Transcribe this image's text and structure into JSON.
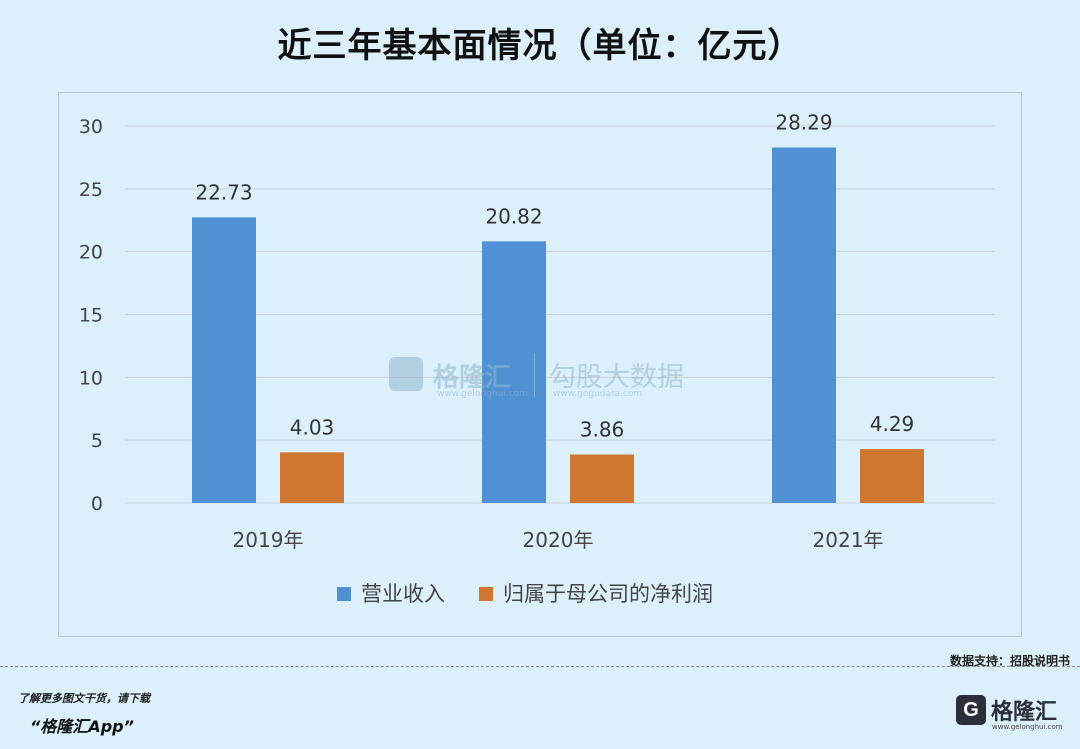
{
  "title": "近三年基本面情况（单位：亿元）",
  "watermark": {
    "left_logo": "格隆汇",
    "left_url": "www.gelonghui.com",
    "right_text": "勾股大数据",
    "right_url": "www.gogudata.com"
  },
  "source": "数据支持：招股说明书",
  "promo": {
    "line": "了解更多图文干货，请下载",
    "app": "“格隆汇App”"
  },
  "brand": {
    "logo_letter": "G",
    "name": "格隆汇",
    "url": "www.gelonghui.com"
  },
  "chart_data": {
    "type": "bar",
    "categories": [
      "2019年",
      "2020年",
      "2021年"
    ],
    "series": [
      {
        "name": "营业收入",
        "values": [
          22.73,
          20.82,
          28.29
        ],
        "labels": [
          "22.73",
          "20.82",
          "28.29"
        ],
        "color": "#4f91d2"
      },
      {
        "name": "归属于母公司的净利润",
        "values": [
          4.03,
          3.86,
          4.29
        ],
        "labels": [
          "4.03",
          "3.86",
          "4.29"
        ],
        "color": "#cf7631"
      }
    ],
    "ylim": [
      0,
      30
    ],
    "yticks": [
      "0",
      "5",
      "10",
      "15",
      "20",
      "25",
      "30"
    ],
    "grid": true,
    "legend": "bottom"
  }
}
